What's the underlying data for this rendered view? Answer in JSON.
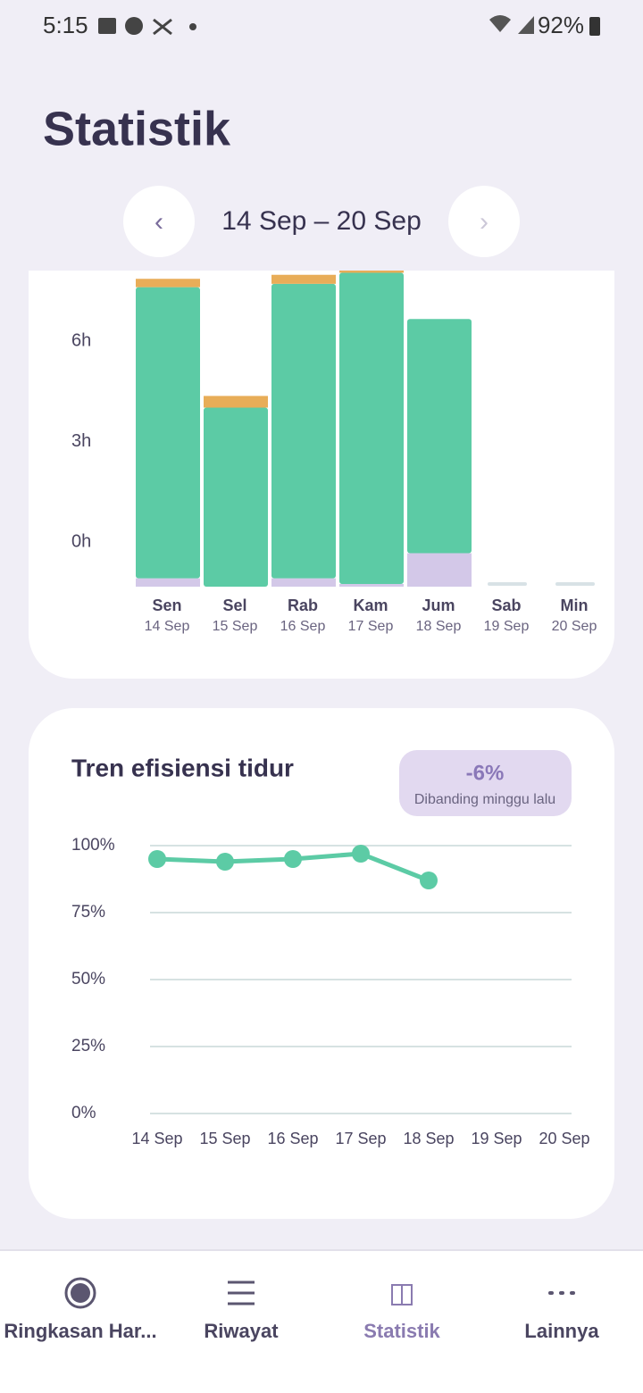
{
  "status_bar": {
    "time": "5:15",
    "battery": "92%"
  },
  "header": {
    "title": "Statistik",
    "date_range": "14 Sep – 20 Sep"
  },
  "sleep_chart": {
    "type": "bar",
    "stacked": true,
    "categories": [
      "Sen",
      "Sel",
      "Rab",
      "Kam",
      "Jum",
      "Sab",
      "Min"
    ],
    "dates": [
      "14 Sep",
      "15 Sep",
      "16 Sep",
      "17 Sep",
      "18 Sep",
      "19 Sep",
      "20 Sep"
    ],
    "series": [
      {
        "color": "#d3c8e8",
        "values": [
          0.25,
          0,
          0.25,
          0.08,
          1.0,
          0,
          0
        ]
      },
      {
        "color": "#5ccba5",
        "values": [
          8.7,
          5.35,
          8.8,
          9.3,
          7.0,
          0,
          0
        ]
      },
      {
        "color": "#e8ad58",
        "values": [
          0.25,
          0.35,
          0.27,
          0.1,
          0,
          0,
          0
        ]
      }
    ],
    "ylim": [
      0,
      9.5
    ],
    "yticks": [
      {
        "value": 0,
        "label": "0h"
      },
      {
        "value": 3,
        "label": "3h"
      },
      {
        "value": 6,
        "label": "6h"
      }
    ]
  },
  "efficiency_chart": {
    "type": "line",
    "title": "Tren efisiensi tidur",
    "badge": {
      "value": "-6%",
      "caption": "Dibanding minggu lalu"
    },
    "x": [
      "14 Sep",
      "15 Sep",
      "16 Sep",
      "17 Sep",
      "18 Sep",
      "19 Sep",
      "20 Sep"
    ],
    "series": [
      {
        "color": "#5ccba5",
        "values": [
          95,
          94,
          95,
          97,
          87,
          null,
          null
        ]
      }
    ],
    "ylim": [
      0,
      100
    ],
    "yticks": [
      {
        "value": 0,
        "label": "0%"
      },
      {
        "value": 25,
        "label": "25%"
      },
      {
        "value": 50,
        "label": "50%"
      },
      {
        "value": 75,
        "label": "75%"
      },
      {
        "value": 100,
        "label": "100%"
      }
    ],
    "grid": true
  },
  "nav": {
    "items": [
      {
        "label": "Ringkasan Har...",
        "active": false
      },
      {
        "label": "Riwayat",
        "active": false
      },
      {
        "label": "Statistik",
        "active": true
      },
      {
        "label": "Lainnya",
        "active": false
      }
    ]
  }
}
